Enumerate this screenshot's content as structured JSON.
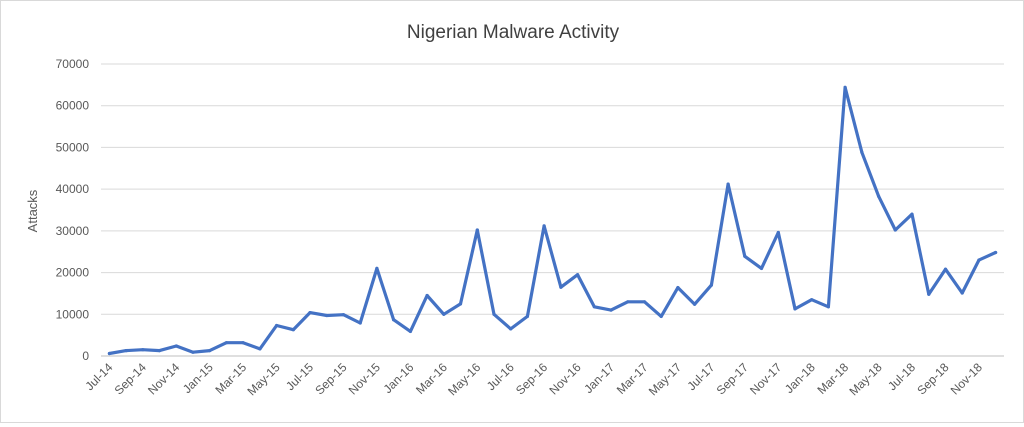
{
  "chart_data": {
    "type": "line",
    "title": "Nigerian Malware Activity",
    "xlabel": "",
    "ylabel": "Attacks",
    "ylim": [
      0,
      70000
    ],
    "y_ticks": [
      "0",
      "10000",
      "20000",
      "30000",
      "40000",
      "50000",
      "60000",
      "70000"
    ],
    "grid": "horizontal",
    "x_tick_labels": [
      "Jul-14",
      "Sep-14",
      "Nov-14",
      "Jan-15",
      "Mar-15",
      "May-15",
      "Jul-15",
      "Sep-15",
      "Nov-15",
      "Jan-16",
      "Mar-16",
      "May-16",
      "Jul-16",
      "Sep-16",
      "Nov-16",
      "Jan-17",
      "Mar-17",
      "May-17",
      "Jul-17",
      "Sep-17",
      "Nov-17",
      "Jan-18",
      "Mar-18",
      "May-18",
      "Jul-18",
      "Sep-18",
      "Nov-18"
    ],
    "categories": [
      "Jul-14",
      "Aug-14",
      "Sep-14",
      "Oct-14",
      "Nov-14",
      "Dec-14",
      "Jan-15",
      "Feb-15",
      "Mar-15",
      "Apr-15",
      "May-15",
      "Jun-15",
      "Jul-15",
      "Aug-15",
      "Sep-15",
      "Oct-15",
      "Nov-15",
      "Dec-15",
      "Jan-16",
      "Feb-16",
      "Mar-16",
      "Apr-16",
      "May-16",
      "Jun-16",
      "Jul-16",
      "Aug-16",
      "Sep-16",
      "Oct-16",
      "Nov-16",
      "Dec-16",
      "Jan-17",
      "Feb-17",
      "Mar-17",
      "Apr-17",
      "May-17",
      "Jun-17",
      "Jul-17",
      "Aug-17",
      "Sep-17",
      "Oct-17",
      "Nov-17",
      "Dec-17",
      "Jan-18",
      "Feb-18",
      "Mar-18",
      "Apr-18",
      "May-18",
      "Jun-18",
      "Jul-18",
      "Aug-18",
      "Sep-18",
      "Oct-18",
      "Nov-18",
      "Dec-18"
    ],
    "series": [
      {
        "color": "#4472c4",
        "values": [
          600,
          1300,
          1500,
          1300,
          2400,
          900,
          1300,
          3200,
          3200,
          1700,
          7300,
          6300,
          10400,
          9700,
          9900,
          7900,
          21000,
          8700,
          5900,
          14500,
          10000,
          12500,
          30200,
          10000,
          6500,
          9500,
          31200,
          16500,
          19500,
          11800,
          11000,
          13000,
          13000,
          9500,
          16400,
          12400,
          17000,
          41200,
          23900,
          21000,
          29600,
          11300,
          13500,
          11800,
          64400,
          48800,
          38300,
          30200,
          34000,
          14800,
          20800,
          15100,
          23000,
          24800
        ]
      }
    ]
  }
}
